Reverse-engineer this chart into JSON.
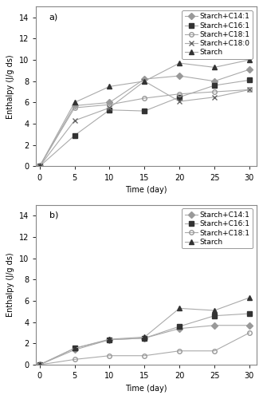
{
  "time": [
    0,
    5,
    10,
    15,
    20,
    25,
    30
  ],
  "subplot_a": {
    "label": "a)",
    "series": {
      "Starch+C14:1": {
        "values": [
          0,
          5.7,
          6.0,
          8.2,
          8.5,
          8.0,
          9.1
        ],
        "marker": "D",
        "color": "#999999",
        "markersize": 4,
        "fillstyle": "full"
      },
      "Starch+C16:1": {
        "values": [
          0,
          2.9,
          5.3,
          5.2,
          6.5,
          7.6,
          8.1
        ],
        "marker": "s",
        "color": "#333333",
        "markersize": 4,
        "fillstyle": "full"
      },
      "Starch+C18:1": {
        "values": [
          0,
          5.5,
          5.8,
          6.4,
          6.8,
          7.0,
          7.2
        ],
        "marker": "o",
        "color": "#999999",
        "markersize": 4,
        "fillstyle": "none"
      },
      "Starch+C18:0": {
        "values": [
          0,
          4.3,
          5.5,
          8.0,
          6.1,
          6.5,
          7.2
        ],
        "marker": "x",
        "color": "#666666",
        "markersize": 5,
        "fillstyle": "full"
      },
      "Starch": {
        "values": [
          0,
          6.0,
          7.5,
          8.0,
          9.7,
          9.3,
          10.0
        ],
        "marker": "^",
        "color": "#333333",
        "markersize": 5,
        "fillstyle": "full"
      }
    },
    "ylim": [
      0,
      15
    ],
    "yticks": [
      0,
      2,
      4,
      6,
      8,
      10,
      12,
      14
    ],
    "legend_order": [
      "Starch+C14:1",
      "Starch+C16:1",
      "Starch+C18:1",
      "Starch+C18:0",
      "Starch"
    ]
  },
  "subplot_b": {
    "label": "b)",
    "series": {
      "Starch+C14:1": {
        "values": [
          0,
          1.4,
          2.35,
          2.5,
          3.4,
          3.7,
          3.7
        ],
        "marker": "D",
        "color": "#999999",
        "markersize": 4,
        "fillstyle": "full"
      },
      "Starch+C16:1": {
        "values": [
          0,
          1.55,
          2.35,
          2.5,
          3.6,
          4.6,
          4.8
        ],
        "marker": "s",
        "color": "#333333",
        "markersize": 4,
        "fillstyle": "full"
      },
      "Starch+C18:1": {
        "values": [
          0,
          0.5,
          0.85,
          0.85,
          1.3,
          1.3,
          3.0
        ],
        "marker": "o",
        "color": "#999999",
        "markersize": 4,
        "fillstyle": "none"
      },
      "Starch": {
        "values": [
          0,
          1.55,
          2.4,
          2.6,
          5.3,
          5.1,
          6.3
        ],
        "marker": "^",
        "color": "#333333",
        "markersize": 5,
        "fillstyle": "full"
      }
    },
    "ylim": [
      0,
      15
    ],
    "yticks": [
      0,
      2,
      4,
      6,
      8,
      10,
      12,
      14
    ],
    "legend_order": [
      "Starch+C14:1",
      "Starch+C16:1",
      "Starch+C18:1",
      "Starch"
    ]
  },
  "xlabel": "Time (day)",
  "ylabel": "Enthalpy (J/g ds)",
  "xticks": [
    0,
    5,
    10,
    15,
    20,
    25,
    30
  ],
  "line_color": "#aaaaaa",
  "background_color": "#ffffff",
  "fontsize": 7
}
